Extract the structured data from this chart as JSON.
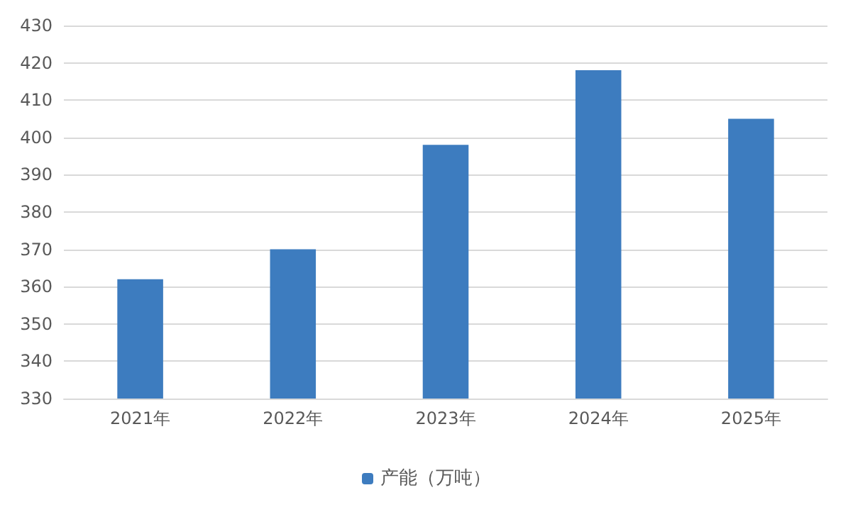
{
  "chart_data": {
    "type": "bar",
    "categories": [
      "2021年",
      "2022年",
      "2023年",
      "2024年",
      "2025年"
    ],
    "series": [
      {
        "name": "产能（万吨）",
        "color": "#3d7cbf",
        "values": [
          362,
          370,
          398,
          418,
          405
        ]
      }
    ],
    "ylim": [
      330,
      430
    ],
    "yticks": [
      330,
      340,
      350,
      360,
      370,
      380,
      390,
      400,
      410,
      420,
      430
    ],
    "grid": "y",
    "legend": "bottom"
  }
}
